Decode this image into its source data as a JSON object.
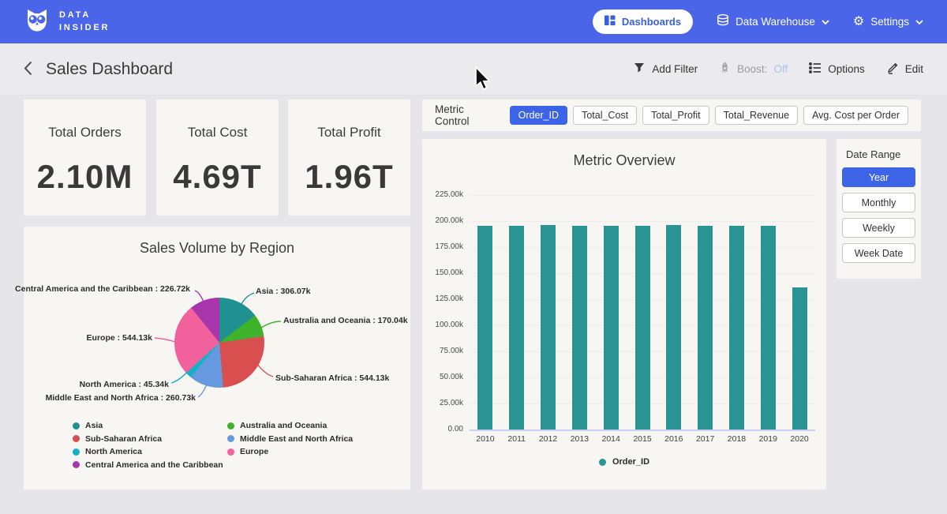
{
  "navbar": {
    "brand_line1": "DATA",
    "brand_line2": "INSIDER",
    "dashboards_label": "Dashboards",
    "data_warehouse_label": "Data Warehouse",
    "settings_label": "Settings"
  },
  "header": {
    "title": "Sales Dashboard",
    "add_filter_label": "Add Filter",
    "boost_label": "Boost:",
    "boost_state": "Off",
    "options_label": "Options",
    "edit_label": "Edit"
  },
  "kpis": [
    {
      "label": "Total Orders",
      "value": "2.10M"
    },
    {
      "label": "Total Cost",
      "value": "4.69T"
    },
    {
      "label": "Total Profit",
      "value": "1.96T"
    }
  ],
  "metric_control": {
    "label": "Metric Control",
    "buttons": [
      {
        "label": "Order_ID",
        "selected": true
      },
      {
        "label": "Total_Cost",
        "selected": false
      },
      {
        "label": "Total_Profit",
        "selected": false
      },
      {
        "label": "Total_Revenue",
        "selected": false
      },
      {
        "label": "Avg. Cost per Order",
        "selected": false
      }
    ]
  },
  "date_range": {
    "label": "Date Range",
    "buttons": [
      {
        "label": "Year",
        "selected": true
      },
      {
        "label": "Monthly",
        "selected": false
      },
      {
        "label": "Weekly",
        "selected": false
      },
      {
        "label": "Week Date",
        "selected": false
      }
    ]
  },
  "icons": {
    "logo": "owl-logo",
    "dashboards": "dashboard-grid-icon",
    "data_warehouse": "database-icon",
    "settings": "gear-icon",
    "dropdown": "chevron-down-icon",
    "back": "chevron-left-icon",
    "add_filter": "funnel-icon",
    "boost": "rocket-icon",
    "options": "list-icon",
    "edit": "pencil-icon",
    "pointer": "mouse-cursor"
  },
  "colors": {
    "navbar_blue": "#4A65E8",
    "accent_blue": "#3D64E6",
    "page_bg": "#E6E6EA",
    "panel_bg": "#F7F6F3",
    "bar_teal": "#2A9393",
    "boost_off_blue": "#A9C3F3",
    "text_dark": "#3A3A3A"
  },
  "chart_data": [
    {
      "type": "pie",
      "title": "Sales Volume by Region",
      "slices": [
        {
          "label": "Asia",
          "value": 306070,
          "display": "306.07k",
          "color": "#1F9191"
        },
        {
          "label": "Australia and Oceania",
          "value": 170040,
          "display": "170.04k",
          "color": "#3FB22C"
        },
        {
          "label": "Sub-Saharan Africa",
          "value": 544130,
          "display": "544.13k",
          "color": "#D94F4F"
        },
        {
          "label": "Middle East and North Africa",
          "value": 260730,
          "display": "260.73k",
          "color": "#6699E0"
        },
        {
          "label": "North America",
          "value": 45340,
          "display": "45.34k",
          "color": "#15B0C6"
        },
        {
          "label": "Europe",
          "value": 544130,
          "display": "544.13k",
          "color": "#F2619B"
        },
        {
          "label": "Central America and the Caribbean",
          "value": 226720,
          "display": "226.72k",
          "color": "#A935AD"
        }
      ],
      "legend_order": [
        "Asia",
        "Sub-Saharan Africa",
        "North America",
        "Central America and the Caribbean",
        "Australia and Oceania",
        "Middle East and North Africa",
        "Europe"
      ],
      "legend_position": "bottom"
    },
    {
      "type": "bar",
      "title": "Metric Overview",
      "categories": [
        "2010",
        "2011",
        "2012",
        "2013",
        "2014",
        "2015",
        "2016",
        "2017",
        "2018",
        "2019",
        "2020"
      ],
      "values": [
        195500,
        195500,
        196300,
        195400,
        195500,
        195400,
        196300,
        195500,
        195400,
        195500,
        136000
      ],
      "series_name": "Order_ID",
      "bar_color": "#2A9393",
      "ylim": [
        0,
        225000
      ],
      "y_ticks": [
        "225.00k",
        "200.00k",
        "175.00k",
        "150.00k",
        "125.00k",
        "100.00k",
        "75.00k",
        "50.00k",
        "25.00k",
        "0.00"
      ],
      "grid": true,
      "legend_position": "bottom"
    }
  ]
}
